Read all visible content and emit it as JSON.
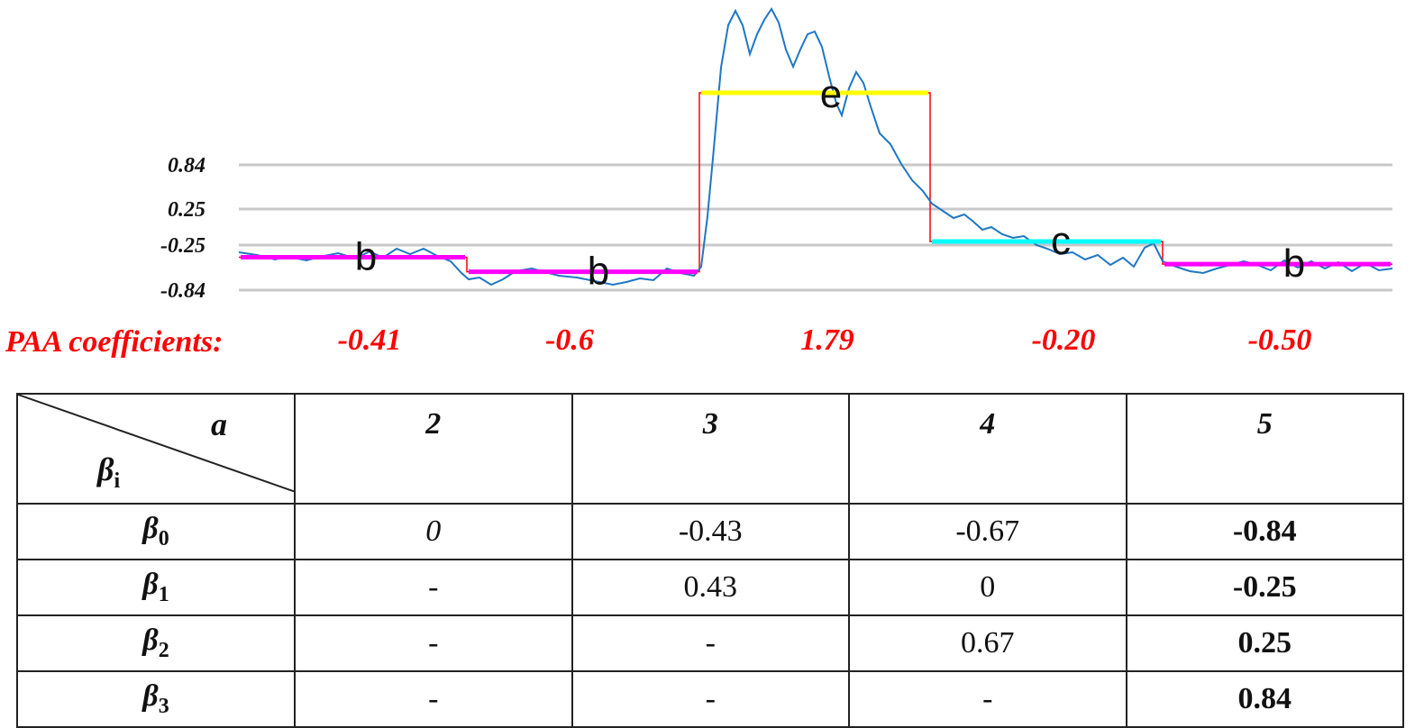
{
  "chart": {
    "y_ticks": [
      {
        "label": "0.84",
        "value": 0.84
      },
      {
        "label": "0.25",
        "value": 0.25
      },
      {
        "label": "-0.25",
        "value": -0.25
      },
      {
        "label": "-0.84",
        "value": -0.84
      }
    ],
    "segments": [
      {
        "symbol": "b",
        "paa": -0.41,
        "color": "#ff00ff"
      },
      {
        "symbol": "b",
        "paa": -0.6,
        "color": "#ff00ff"
      },
      {
        "symbol": "e",
        "paa": 1.79,
        "color": "#ffff00"
      },
      {
        "symbol": "c",
        "paa": -0.2,
        "color": "#00ffff"
      },
      {
        "symbol": "b",
        "paa": -0.5,
        "color": "#ff00ff"
      }
    ],
    "colors": {
      "signal": "#1f77c4",
      "paa_step": "#ff0000",
      "gridline": "#c8c8c8",
      "paa_text": "#ff0000"
    }
  },
  "paa": {
    "title": "PAA coefficients",
    "colon": ":",
    "values": [
      "-0.41",
      "-0.6",
      "1.79",
      "-0.20",
      "-0.50"
    ]
  },
  "table": {
    "corner_top": "a",
    "corner_bottom_main": "β",
    "corner_bottom_sub": "i",
    "columns": [
      "2",
      "3",
      "4",
      "5"
    ],
    "rows": [
      {
        "label": "β",
        "sub": "0",
        "cells": [
          "0",
          "-0.43",
          "-0.67",
          "-0.84"
        ]
      },
      {
        "label": "β",
        "sub": "1",
        "cells": [
          "-",
          "0.43",
          "0",
          "-0.25"
        ]
      },
      {
        "label": "β",
        "sub": "2",
        "cells": [
          "-",
          "-",
          "0.67",
          "0.25"
        ]
      },
      {
        "label": "β",
        "sub": "3",
        "cells": [
          "-",
          "-",
          "-",
          "0.84"
        ]
      }
    ]
  }
}
